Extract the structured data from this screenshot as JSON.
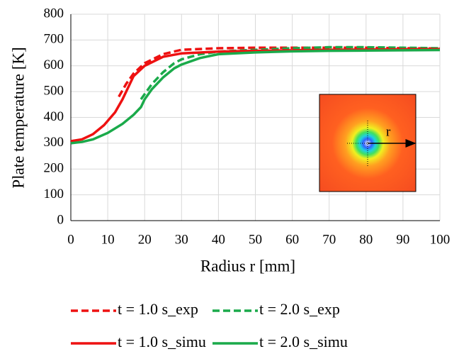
{
  "chart_data": {
    "type": "line",
    "x_label": "Radius r [mm]",
    "y_label": "Plate temperature [K]",
    "inset_label": "r",
    "xlim": [
      0,
      100
    ],
    "xticks": [
      0,
      10,
      20,
      30,
      40,
      50,
      60,
      70,
      80,
      90,
      100
    ],
    "ylim": [
      0,
      800
    ],
    "yticks": [
      0,
      100,
      200,
      300,
      400,
      500,
      600,
      700,
      800
    ],
    "grid": true,
    "series": [
      {
        "name": "t = 1.0 s_exp",
        "color": "#ee1111",
        "style": "dashed",
        "x": [
          13,
          15,
          17,
          20,
          25,
          30,
          40,
          50,
          60,
          70,
          80,
          90,
          100
        ],
        "values": [
          480,
          530,
          570,
          610,
          645,
          662,
          668,
          670,
          670,
          670,
          670,
          668,
          667
        ]
      },
      {
        "name": "t = 2.0 s_exp",
        "color": "#1aaa4a",
        "style": "dashed",
        "x": [
          19,
          20,
          22,
          25,
          28,
          30,
          35,
          40,
          50,
          60,
          70,
          80,
          90,
          100
        ],
        "values": [
          470,
          490,
          530,
          575,
          610,
          625,
          645,
          655,
          662,
          668,
          672,
          672,
          670,
          668
        ]
      },
      {
        "name": "t = 1.0 s_simu",
        "color": "#ee1111",
        "style": "solid",
        "x": [
          0,
          3,
          6,
          9,
          12,
          14,
          15,
          17,
          20,
          25,
          30,
          40,
          50,
          60,
          70,
          80,
          90,
          100
        ],
        "values": [
          308,
          315,
          335,
          370,
          420,
          470,
          500,
          560,
          600,
          635,
          648,
          655,
          658,
          660,
          662,
          663,
          664,
          665
        ]
      },
      {
        "name": "t = 2.0 s_simu",
        "color": "#1aaa4a",
        "style": "solid",
        "x": [
          0,
          3,
          6,
          10,
          14,
          17,
          19,
          20,
          22,
          25,
          28,
          30,
          35,
          40,
          50,
          60,
          70,
          80,
          90,
          100
        ],
        "values": [
          300,
          305,
          315,
          340,
          375,
          410,
          440,
          470,
          510,
          555,
          590,
          605,
          630,
          645,
          652,
          656,
          658,
          659,
          660,
          661
        ]
      }
    ]
  }
}
